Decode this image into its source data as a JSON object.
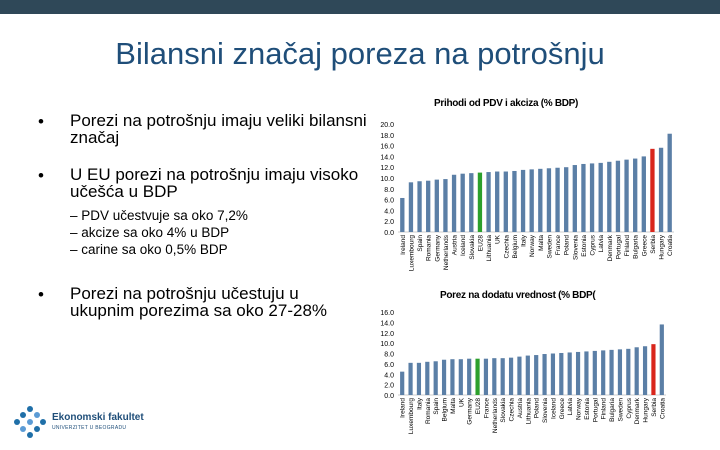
{
  "slide": {
    "title": "Bilansni značaj poreza na potrošnju",
    "bullets": [
      {
        "marker": "•",
        "text": "Porezi na potrošnju imaju veliki bilansni značaj"
      },
      {
        "marker": "•",
        "text": "U EU porezi na potrošnju imaju visoko učešća u BDP"
      },
      {
        "marker": "•",
        "text": "Porezi na potrošnju učestuju u ukupnim porezima sa oko 27-28%"
      }
    ],
    "subbullets": [
      "–  PDV učestvuje sa oko 7,2%",
      "–  akcize sa oko 4% u BDP",
      "–  carine sa oko 0,5% BDP"
    ]
  },
  "logo": {
    "name": "Ekonomski fakultet",
    "sub": "UNIVERZITET U BEOGRADU"
  },
  "colors": {
    "topbar": "#2f4858",
    "title": "#1f4e79",
    "bar": "#5b7fa6",
    "highlight_red": "#d9261c",
    "highlight_green": "#2ca02c"
  },
  "chart_data": [
    {
      "type": "bar",
      "title": "Prihodi od PDV i akciza (% BDP)",
      "ylim": [
        0,
        20
      ],
      "yticks": [
        "20.0",
        "18.0",
        "16.0",
        "14.0",
        "12.0",
        "10.0",
        "8.0",
        "6.0",
        "4.0",
        "2.0",
        "0.0"
      ],
      "categories": [
        "Ireland",
        "Luxembourg",
        "Spain",
        "Romania",
        "Germany",
        "Netherlands",
        "Austria",
        "Iceland",
        "Slovakia",
        "EU28",
        "Lithuania",
        "UK",
        "Czechia",
        "Belgium",
        "Italy",
        "Norway",
        "Malta",
        "Sweden",
        "France",
        "Poland",
        "Slovenia",
        "Estonia",
        "Cyprus",
        "Latvia",
        "Denmark",
        "Portugal",
        "Finland",
        "Bulgaria",
        "Greece",
        "Serbia",
        "Hungary",
        "Croatia"
      ],
      "values": [
        6.3,
        9.2,
        9.4,
        9.5,
        9.7,
        9.8,
        10.6,
        10.8,
        10.9,
        11.0,
        11.1,
        11.2,
        11.2,
        11.3,
        11.5,
        11.6,
        11.7,
        11.8,
        11.9,
        12.0,
        12.4,
        12.6,
        12.7,
        12.8,
        13.0,
        13.2,
        13.4,
        13.6,
        14.0,
        15.4,
        15.6,
        18.2
      ],
      "highlight": {
        "Serbia": "red",
        "EU28": "green"
      }
    },
    {
      "type": "bar",
      "title": "Porez na dodatu vrednost (% BDP(",
      "ylim": [
        0,
        16
      ],
      "yticks": [
        "16.0",
        "14.0",
        "12.0",
        "10.0",
        "8.0",
        "6.0",
        "4.0",
        "2.0",
        "0.0"
      ],
      "categories": [
        "Ireland",
        "Luxembourg",
        "Italy",
        "Romania",
        "Spain",
        "Belgium",
        "Malta",
        "UK",
        "Germany",
        "EU28",
        "France",
        "Netherlands",
        "Slovakia",
        "Czechia",
        "Austria",
        "Lithuania",
        "Poland",
        "Slovenia",
        "Iceland",
        "Greece",
        "Latvia",
        "Norway",
        "Estonia",
        "Portugal",
        "Finland",
        "Bulgaria",
        "Sweden",
        "Cyprus",
        "Denmark",
        "Hungary",
        "Serbia",
        "Croatia"
      ],
      "values": [
        4.5,
        6.2,
        6.2,
        6.4,
        6.5,
        6.8,
        6.9,
        6.9,
        7.0,
        7.0,
        7.0,
        7.1,
        7.1,
        7.2,
        7.4,
        7.6,
        7.7,
        7.9,
        8.0,
        8.1,
        8.2,
        8.3,
        8.4,
        8.5,
        8.6,
        8.7,
        8.8,
        8.9,
        9.2,
        9.4,
        9.8,
        13.6
      ],
      "highlight": {
        "Serbia": "red",
        "EU28": "green"
      }
    }
  ]
}
